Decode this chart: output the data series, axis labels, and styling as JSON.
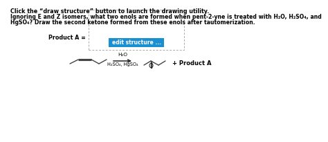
{
  "line1": "Click the “draw structure” button to launch the drawing utility.",
  "line2": "Ignoring E and Z isomers, what two enols are formed when pent-2-yne is treated with H₂O, H₂SO₄, and",
  "line3": "HgSO₄? Draw the second ketone formed from these enols after tautomerization.",
  "reagent_top": "H₂O",
  "reagent_bottom": "H₂SO₄, HgSO₄",
  "product_label": "+ Product A",
  "product_a_label": "Product A =",
  "edit_button_text": "edit structure ...",
  "edit_button_color": "#1a8fd1",
  "edit_button_text_color": "#ffffff",
  "background_color": "#ffffff",
  "text_color": "#000000",
  "mol_color": "#444444",
  "dashed_box_color": "#aaaaaa",
  "arrow_color": "#222222"
}
